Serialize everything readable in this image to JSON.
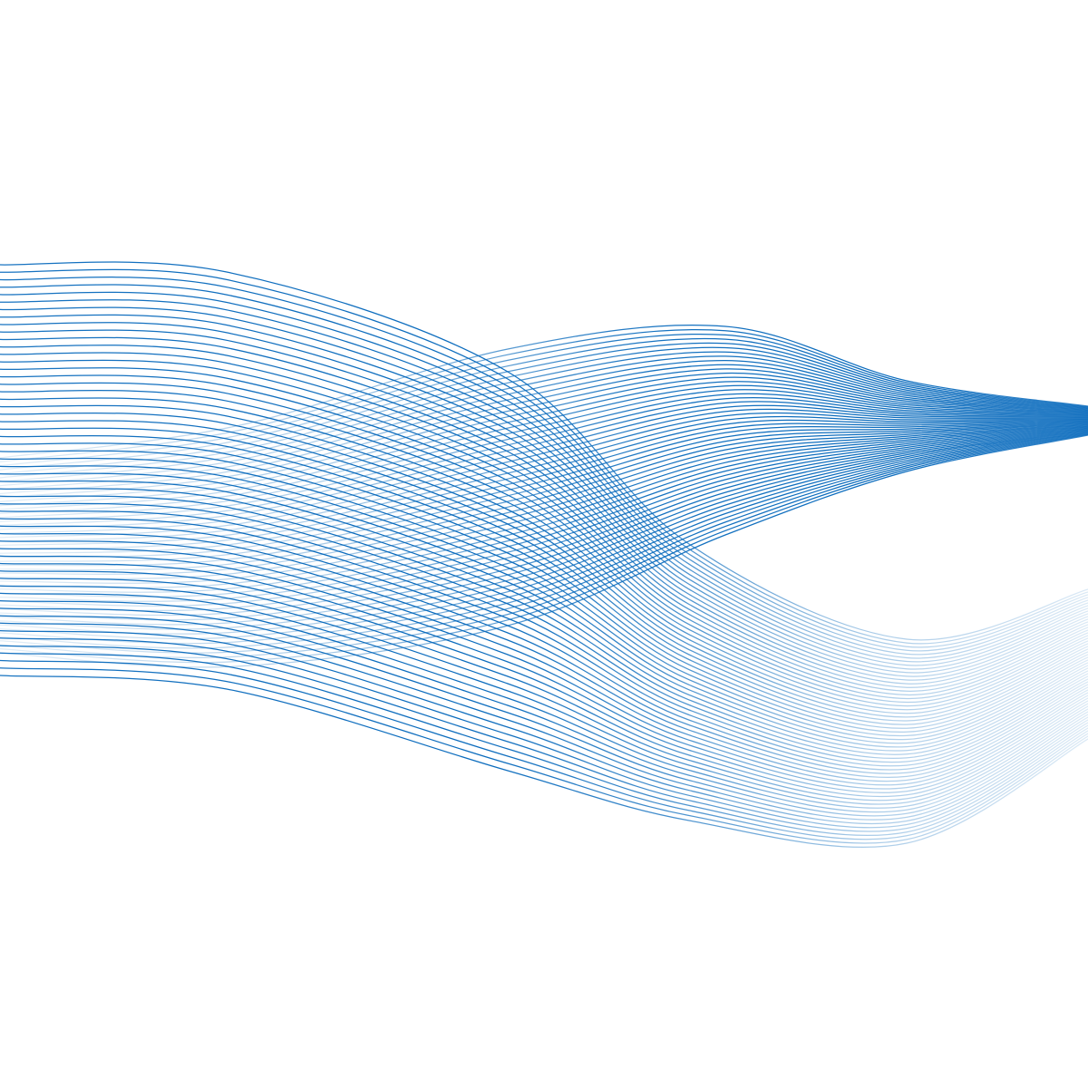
{
  "artwork": {
    "subject": "abstract-wave-lines",
    "background_color": "#ffffff",
    "line_color": "#0a6bbd",
    "line_color_light": "#bcd8f1",
    "band_a_line_count": 56,
    "band_b_line_count": 50
  }
}
